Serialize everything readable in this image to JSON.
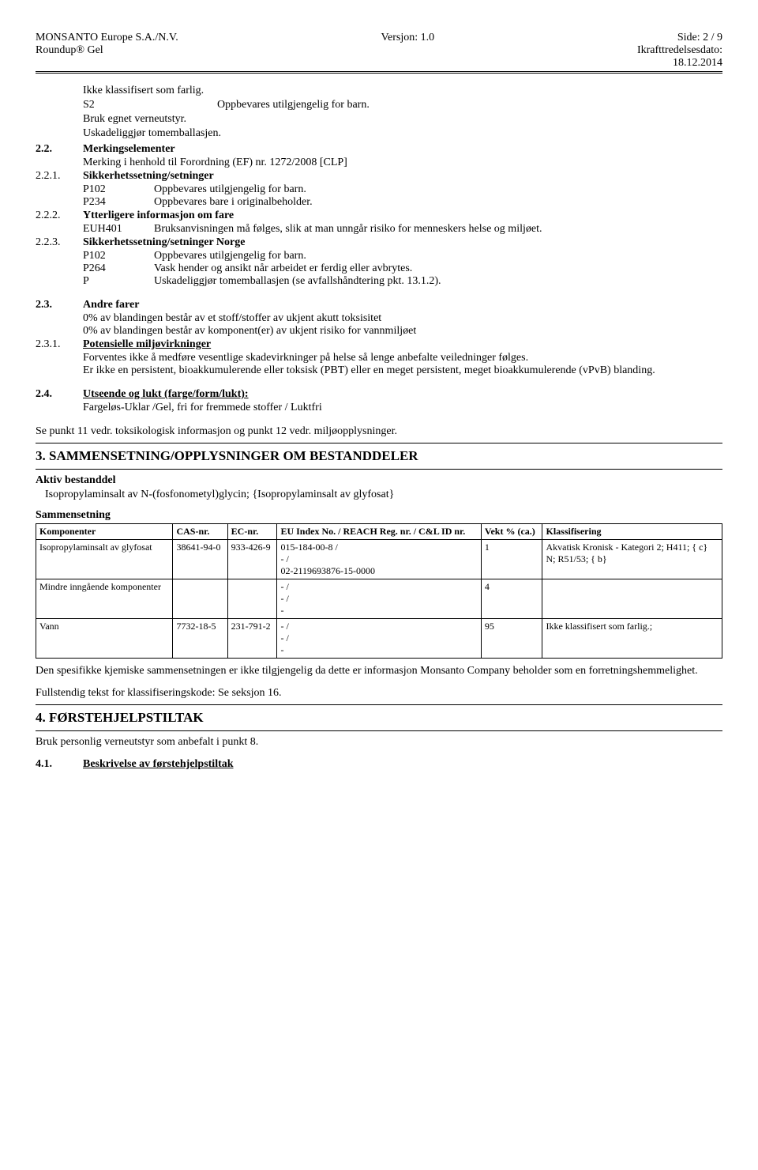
{
  "header": {
    "company": "MONSANTO Europe S.A./N.V.",
    "product": "Roundup® Gel",
    "version_label": "Versjon: 1.0",
    "side_label": "Side: 2 / 9",
    "date_label": "Ikrafttredelsesdato:",
    "date_value": "18.12.2014"
  },
  "intro": {
    "l1": "Ikke klassifisert som farlig.",
    "s2_code": "S2",
    "s2_text": "Oppbevares utilgjengelig for barn.",
    "l3": "Bruk egnet verneutstyr.",
    "l4": "Uskadeliggjør tomemballasjen."
  },
  "s22": {
    "num": "2.2.",
    "title": "Merkingselementer",
    "sub": "Merking i henhold til Forordning (EF) nr. 1272/2008 [CLP]"
  },
  "s221": {
    "num": "2.2.1.",
    "title": "Sikkerhetssetning/setninger",
    "p102_code": "P102",
    "p102_text": "Oppbevares utilgjengelig for barn.",
    "p234_code": "P234",
    "p234_text": "Oppbevares bare i originalbeholder."
  },
  "s222": {
    "num": "2.2.2.",
    "title": "Ytterligere informasjon om fare",
    "euh_code": "EUH401",
    "euh_text": "Bruksanvisningen må følges, slik at man unngår risiko for menneskers helse og miljøet."
  },
  "s223": {
    "num": "2.2.3.",
    "title": "Sikkerhetssetning/setninger Norge",
    "p102_code": "P102",
    "p102_text": "Oppbevares utilgjengelig for barn.",
    "p264_code": "P264",
    "p264_text": "Vask hender og ansikt når arbeidet er ferdig eller avbrytes.",
    "p_code": "P",
    "p_text": "Uskadeliggjør tomemballasjen (se avfallshåndtering pkt. 13.1.2)."
  },
  "s23": {
    "num": "2.3.",
    "title": "Andre farer",
    "l1": "0% av blandingen består av et stoff/stoffer av ukjent akutt toksisitet",
    "l2": "0% av blandingen består av komponent(er) av ukjent risiko for vannmiljøet"
  },
  "s231": {
    "num": "2.3.1.",
    "title": "Potensielle miljøvirkninger",
    "l1": "Forventes ikke å medføre vesentlige skadevirkninger på helse så lenge anbefalte veiledninger følges.",
    "l2": "Er ikke en persistent, bioakkumulerende eller toksisk (PBT) eller en meget persistent, meget bioakkumulerende (vPvB) blanding."
  },
  "s24": {
    "num": "2.4.",
    "title": "Utseende og lukt (farge/form/lukt):",
    "l1": "Fargeløs-Uklar /Gel, fri for fremmede stoffer / Luktfri"
  },
  "sepunkt": "Se punkt 11 vedr. toksikologisk informasjon og punkt 12 vedr. miljøopplysninger.",
  "sec3": {
    "num": "3.",
    "title": "SAMMENSETNING/OPPLYSNINGER OM BESTANDDELER",
    "aktiv_label": "Aktiv bestanddel",
    "aktiv_text": "Isopropylaminsalt av N-(fosfonometyl)glycin; {Isopropylaminsalt av glyfosat}",
    "samm_label": "Sammensetning"
  },
  "table": {
    "headers": [
      "Komponenter",
      "CAS-nr.",
      "EC-nr.",
      "EU Index No. / REACH Reg. nr. / C&L ID nr.",
      "Vekt % (ca.)",
      "Klassifisering"
    ],
    "rows": [
      [
        "Isopropylaminsalt av glyfosat",
        "38641-94-0",
        "933-426-9",
        "015-184-00-8 /\n- /\n02-2119693876-15-0000",
        "1",
        "Akvatisk Kronisk - Kategori 2; H411; { c}\nN; R51/53; { b}"
      ],
      [
        "Mindre inngående komponenter",
        "",
        "",
        "- /\n- /\n-",
        "4",
        ""
      ],
      [
        "Vann",
        "7732-18-5",
        "231-791-2",
        "- /\n- /\n-",
        "95",
        "Ikke klassifisert som farlig.;"
      ]
    ]
  },
  "post_table": {
    "l1": "Den spesifikke kjemiske sammensetningen er ikke tilgjengelig da dette er informasjon Monsanto Company beholder som en forretningshemmelighet.",
    "l2": "Fullstendig tekst for klassifiseringskode: Se seksjon 16."
  },
  "sec4": {
    "num": "4.",
    "title": "FØRSTEHJELPSTILTAK",
    "l1": "Bruk personlig verneutstyr som anbefalt i punkt 8."
  },
  "s41": {
    "num": "4.1.",
    "title": "Beskrivelse av førstehjelpstiltak"
  }
}
